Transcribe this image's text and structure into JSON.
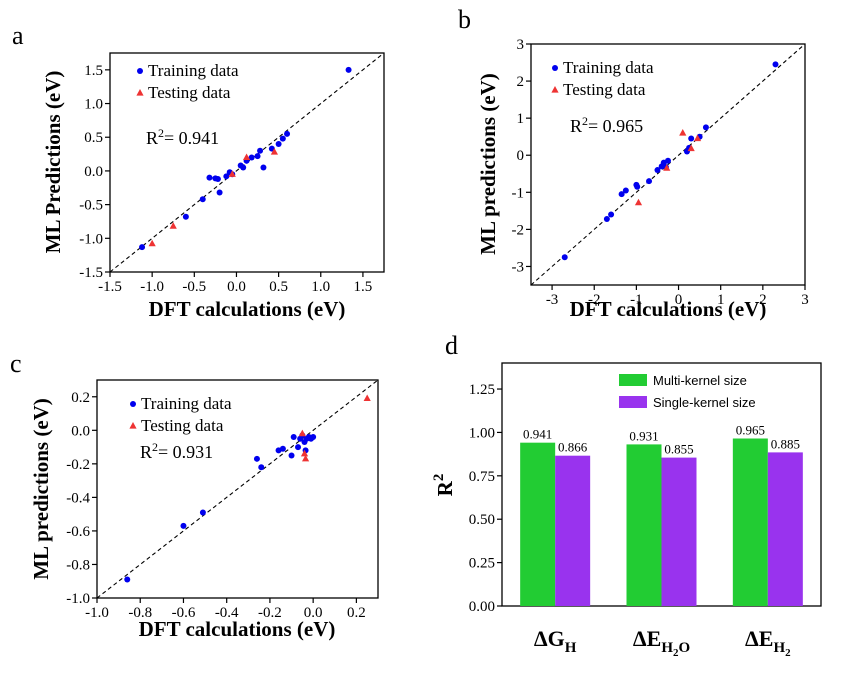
{
  "chart_data": [
    {
      "panel": "a",
      "type": "scatter",
      "xlabel": "DFT calculations (eV)",
      "ylabel": "ML Predictions (eV)",
      "xlim": [
        -1.5,
        1.75
      ],
      "ylim": [
        -1.5,
        1.75
      ],
      "xticks": [
        -1.5,
        -1.0,
        -0.5,
        0.0,
        0.5,
        1.0,
        1.5
      ],
      "yticks": [
        -1.5,
        -1.0,
        -0.5,
        0.0,
        0.5,
        1.0,
        1.5
      ],
      "xtick_labels": [
        "-1.5",
        "-1.0",
        "-0.5",
        "0.0",
        "0.5",
        "1.0",
        "1.5"
      ],
      "ytick_labels": [
        "-1.5",
        "-1.0",
        "-0.5",
        "0.0",
        "0.5",
        "1.0",
        "1.5"
      ],
      "legend": [
        "Training data",
        "Testing data"
      ],
      "annotation": {
        "prefix": "R",
        "sup": "2",
        "value": "= 0.941"
      },
      "series": [
        {
          "name": "Training data",
          "marker": "circle",
          "color": "#0000ee",
          "points": [
            [
              -1.12,
              -1.13
            ],
            [
              -0.6,
              -0.68
            ],
            [
              -0.4,
              -0.42
            ],
            [
              -0.32,
              -0.1
            ],
            [
              -0.25,
              -0.11
            ],
            [
              -0.22,
              -0.12
            ],
            [
              -0.2,
              -0.32
            ],
            [
              -0.12,
              -0.08
            ],
            [
              -0.08,
              -0.02
            ],
            [
              -0.05,
              -0.05
            ],
            [
              0.05,
              0.08
            ],
            [
              0.08,
              0.05
            ],
            [
              0.12,
              0.15
            ],
            [
              0.18,
              0.2
            ],
            [
              0.25,
              0.22
            ],
            [
              0.28,
              0.3
            ],
            [
              0.32,
              0.05
            ],
            [
              0.42,
              0.33
            ],
            [
              0.5,
              0.4
            ],
            [
              0.55,
              0.48
            ],
            [
              0.6,
              0.55
            ],
            [
              1.33,
              1.5
            ]
          ]
        },
        {
          "name": "Testing data",
          "marker": "triangle",
          "color": "#ee3333",
          "points": [
            [
              -1.0,
              -1.08
            ],
            [
              -0.75,
              -0.82
            ],
            [
              -0.05,
              -0.05
            ],
            [
              0.12,
              0.2
            ],
            [
              0.45,
              0.28
            ]
          ]
        }
      ]
    },
    {
      "panel": "b",
      "type": "scatter",
      "xlabel": "DFT calculations (eV)",
      "ylabel": "ML predictions (eV)",
      "xlim": [
        -3.5,
        3.0
      ],
      "ylim": [
        -3.5,
        3.0
      ],
      "xticks": [
        -3,
        -2,
        -1,
        0,
        1,
        2,
        3
      ],
      "yticks": [
        -3,
        -2,
        -1,
        0,
        1,
        2,
        3
      ],
      "xtick_labels": [
        "-3",
        "-2",
        "-1",
        "0",
        "1",
        "2",
        "3"
      ],
      "ytick_labels": [
        "-3",
        "-2",
        "-1",
        "0",
        "1",
        "2",
        "3"
      ],
      "legend": [
        "Training data",
        "Testing data"
      ],
      "annotation": {
        "prefix": "R",
        "sup": "2",
        "value": "= 0.965"
      },
      "series": [
        {
          "name": "Training data",
          "marker": "circle",
          "color": "#0000ee",
          "points": [
            [
              -2.7,
              -2.75
            ],
            [
              -1.7,
              -1.72
            ],
            [
              -1.6,
              -1.6
            ],
            [
              -1.35,
              -1.05
            ],
            [
              -1.25,
              -0.95
            ],
            [
              -1.0,
              -0.8
            ],
            [
              -0.98,
              -0.85
            ],
            [
              -0.7,
              -0.7
            ],
            [
              -0.5,
              -0.4
            ],
            [
              -0.4,
              -0.3
            ],
            [
              -0.35,
              -0.2
            ],
            [
              -0.3,
              -0.32
            ],
            [
              -0.25,
              -0.15
            ],
            [
              0.2,
              0.1
            ],
            [
              0.25,
              0.2
            ],
            [
              0.3,
              0.45
            ],
            [
              0.5,
              0.5
            ],
            [
              0.65,
              0.75
            ],
            [
              2.3,
              2.45
            ]
          ]
        },
        {
          "name": "Testing data",
          "marker": "triangle",
          "color": "#ee3333",
          "points": [
            [
              -0.95,
              -1.28
            ],
            [
              -0.28,
              -0.35
            ],
            [
              0.1,
              0.6
            ],
            [
              0.3,
              0.18
            ],
            [
              0.45,
              0.45
            ]
          ]
        }
      ]
    },
    {
      "panel": "c",
      "type": "scatter",
      "xlabel": "DFT calculations (eV)",
      "ylabel": "ML predictions (eV)",
      "xlim": [
        -1.0,
        0.3
      ],
      "ylim": [
        -1.0,
        0.3
      ],
      "xticks": [
        -1.0,
        -0.8,
        -0.6,
        -0.4,
        -0.2,
        0.0,
        0.2
      ],
      "yticks": [
        -1.0,
        -0.8,
        -0.6,
        -0.4,
        -0.2,
        0.0,
        0.2
      ],
      "xtick_labels": [
        "-1.0",
        "-0.8",
        "-0.6",
        "-0.4",
        "-0.2",
        "0.0",
        "0.2"
      ],
      "ytick_labels": [
        "-1.0",
        "-0.8",
        "-0.6",
        "-0.4",
        "-0.2",
        "0.0",
        "0.2"
      ],
      "legend": [
        "Training data",
        "Testing data"
      ],
      "annotation": {
        "prefix": "R",
        "sup": "2",
        "value": "= 0.931"
      },
      "series": [
        {
          "name": "Training data",
          "marker": "circle",
          "color": "#0000ee",
          "points": [
            [
              -0.86,
              -0.89
            ],
            [
              -0.6,
              -0.57
            ],
            [
              -0.51,
              -0.49
            ],
            [
              -0.26,
              -0.17
            ],
            [
              -0.24,
              -0.22
            ],
            [
              -0.16,
              -0.12
            ],
            [
              -0.14,
              -0.11
            ],
            [
              -0.1,
              -0.15
            ],
            [
              -0.09,
              -0.04
            ],
            [
              -0.07,
              -0.1
            ],
            [
              -0.06,
              -0.05
            ],
            [
              -0.05,
              -0.03
            ],
            [
              -0.04,
              -0.07
            ],
            [
              -0.035,
              -0.12
            ],
            [
              -0.03,
              -0.05
            ],
            [
              -0.02,
              -0.04
            ],
            [
              -0.01,
              -0.05
            ],
            [
              0.0,
              -0.04
            ]
          ]
        },
        {
          "name": "Testing data",
          "marker": "triangle",
          "color": "#ee3333",
          "points": [
            [
              -0.05,
              -0.02
            ],
            [
              -0.04,
              -0.14
            ],
            [
              -0.035,
              -0.17
            ],
            [
              0.25,
              0.19
            ]
          ]
        }
      ]
    },
    {
      "panel": "d",
      "type": "bar",
      "ylabel": "R",
      "ylabel_sup": "2",
      "ylim": [
        0,
        1.4
      ],
      "yticks": [
        0.0,
        0.25,
        0.5,
        0.75,
        1.0,
        1.25
      ],
      "ytick_labels": [
        "0.00",
        "0.25",
        "0.50",
        "0.75",
        "1.00",
        "1.25"
      ],
      "categories": [
        {
          "main": "ΔG",
          "sub": "H"
        },
        {
          "main": "ΔE",
          "sub": "H",
          "subsub": "2",
          "subtail": "O"
        },
        {
          "main": "ΔE",
          "sub": "H",
          "subsub": "2",
          "subtail": ""
        }
      ],
      "series": [
        {
          "name": "Multi-kernel size",
          "color": "#22cc33",
          "values": [
            0.941,
            0.931,
            0.965
          ],
          "labels": [
            "0.941",
            "0.931",
            "0.965"
          ]
        },
        {
          "name": "Single-kernel size",
          "color": "#9933ee",
          "values": [
            0.866,
            0.855,
            0.885
          ],
          "labels": [
            "0.866",
            "0.855",
            "0.885"
          ]
        }
      ],
      "legend": [
        "Multi-kernel size",
        "Single-kernel size"
      ]
    }
  ]
}
